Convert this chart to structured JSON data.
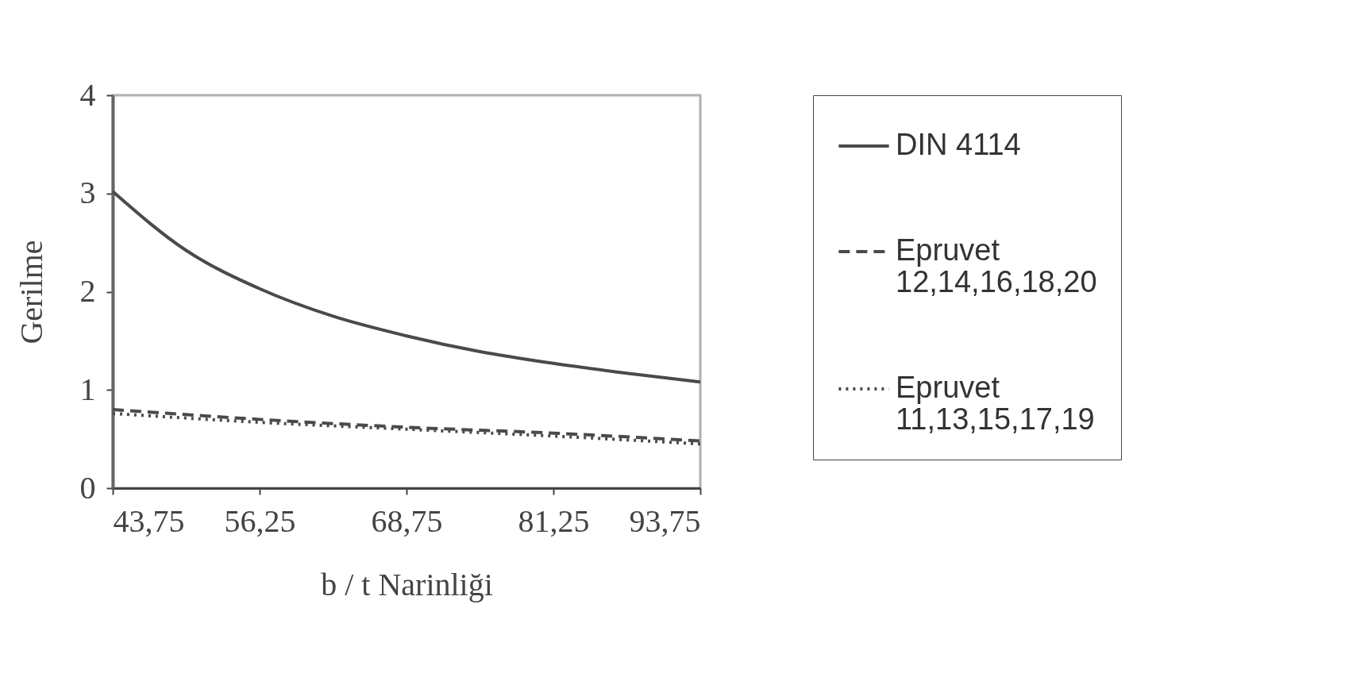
{
  "chart_data": {
    "type": "line",
    "xlabel": "b / t Narinliği",
    "ylabel": "Gerilme",
    "xlim": [
      43.75,
      93.75
    ],
    "xticks": [
      {
        "value": 43.75,
        "label": "43,75"
      },
      {
        "value": 56.25,
        "label": "56,25"
      },
      {
        "value": 68.75,
        "label": "68,75"
      },
      {
        "value": 81.25,
        "label": "81,25"
      },
      {
        "value": 93.75,
        "label": "93,75"
      }
    ],
    "ylim": [
      0,
      4
    ],
    "yticks": [
      0,
      1,
      2,
      3,
      4
    ],
    "grid": false,
    "legend": "right",
    "marker": "none",
    "series": [
      {
        "name": "DIN 4114",
        "color": "#4a4a4a",
        "line_style": "solid",
        "x": [
          43.75,
          50,
          56.25,
          62.5,
          68.75,
          75,
          81.25,
          87.5,
          93.75
        ],
        "values": [
          3.02,
          2.42,
          2.03,
          1.75,
          1.55,
          1.39,
          1.27,
          1.17,
          1.08
        ]
      },
      {
        "name": "Epruvet 12,14,16,18,20",
        "color": "#4a4a4a",
        "line_style": "dashed",
        "x": [
          43.75,
          56.25,
          68.75,
          81.25,
          93.75
        ],
        "values": [
          0.8,
          0.7,
          0.62,
          0.56,
          0.48
        ]
      },
      {
        "name": "Epruvet 11,13,15,17,19",
        "color": "#4a4a4a",
        "line_style": "dotted",
        "x": [
          43.75,
          56.25,
          68.75,
          81.25,
          93.75
        ],
        "values": [
          0.76,
          0.67,
          0.6,
          0.53,
          0.45
        ]
      }
    ]
  }
}
